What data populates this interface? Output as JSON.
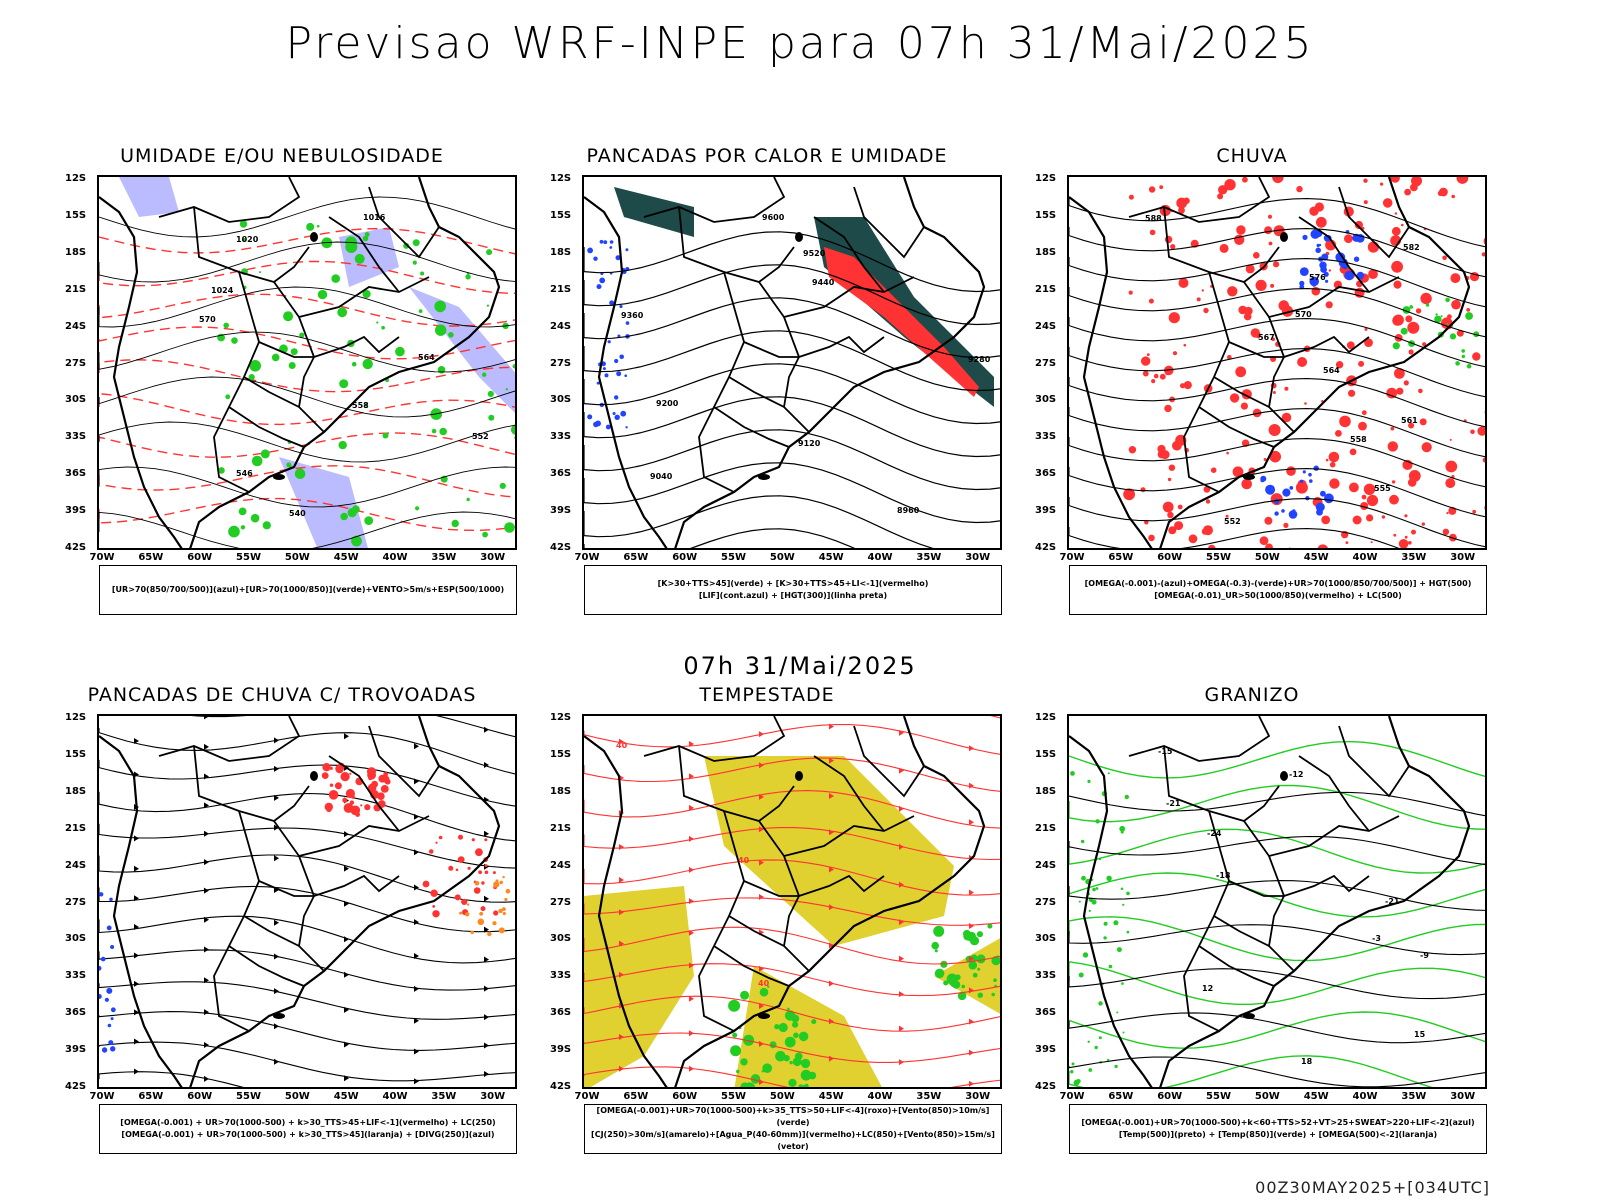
{
  "title": "Previsao WRF-INPE  para 07h 31/Mai/2025",
  "mid_title": "07h 31/Mai/2025",
  "footer": "00Z30MAY2025+[034UTC]",
  "lat_labels": [
    "12S",
    "15S",
    "18S",
    "21S",
    "24S",
    "27S",
    "30S",
    "33S",
    "36S",
    "39S",
    "42S"
  ],
  "lon_labels": [
    "70W",
    "65W",
    "60W",
    "55W",
    "50W",
    "45W",
    "40W",
    "35W",
    "30W"
  ],
  "panels": [
    {
      "title": "UMIDADE E/OU NEBULOSIDADE",
      "legend": [
        "[UR>70(850/700/500)](azul)+[UR>70(1000/850)](verde)+VENTO>5m/s+ESP(500/1000)"
      ],
      "type": "humidity"
    },
    {
      "title": "PANCADAS POR CALOR E UMIDADE",
      "legend": [
        "[K>30+TTS>45](verde) + [K>30+TTS>45+LI<-1](vermelho)",
        "[LIF](cont.azul) + [HGT(300)](linha preta)"
      ],
      "type": "heat"
    },
    {
      "title": "CHUVA",
      "legend": [
        "[OMEGA(-0.001)-(azul)+OMEGA(-0.3)-(verde)+UR>70(1000/850/700/500)] + HGT(500)",
        "[OMEGA(-0.01)_UR>50(1000/850)(vermelho) + LC(500)"
      ],
      "type": "rain"
    },
    {
      "title": "PANCADAS DE CHUVA C/ TROVOADAS",
      "legend": [
        "[OMEGA(-0.001) + UR>70(1000-500) + k>30_TTS>45+LIF<-1](vermelho) + LC(250)",
        "[OMEGA(-0.001) + UR>70(1000-500) + k>30_TTS>45](laranja) + [DIVG(250)](azul)"
      ],
      "type": "storms"
    },
    {
      "title": "TEMPESTADE",
      "legend": [
        "[OMEGA(-0.001)+UR>70(1000-500)+k>35_TTS>50+LIF<-4](roxo)+[Vento(850)>10m/s](verde)",
        "[CJ(250)>30m/s](amarelo)+[Agua_P(40-60mm)](vermelho)+LC(850)+[Vento(850)>15m/s](vetor)"
      ],
      "type": "tempest"
    },
    {
      "title": "GRANIZO",
      "legend": [
        "[OMEGA(-0.001)+UR>70(1000-500)+k<60+TTS>52+VT>25+SWEAT>220+LIF<-2](azul)",
        "[Temp(500)](preto) + [Temp(850)](verde) + [OMEGA(500)<-2](laranja)"
      ],
      "type": "hail"
    }
  ],
  "contour_labels": {
    "humidity": [
      "1016",
      "1020",
      "1024",
      "570",
      "564",
      "558",
      "552",
      "546",
      "540"
    ],
    "heat": [
      "9600",
      "9520",
      "9440",
      "9360",
      "9280",
      "9200",
      "9120",
      "9040",
      "8960"
    ],
    "rain": [
      "588",
      "582",
      "576",
      "570",
      "567",
      "564",
      "561",
      "558",
      "555",
      "552"
    ],
    "tempest": [
      "40",
      "40",
      "40"
    ],
    "hail": [
      "-15",
      "-12",
      "-21",
      "-24",
      "-18",
      "-21",
      "-3",
      "-9",
      "12",
      "15",
      "18"
    ]
  },
  "colors": {
    "green": "#22cc22",
    "red": "#ff3333",
    "blue": "#2244ff",
    "lavender": "#aaaaff",
    "yellow": "#e0d030",
    "orange": "#ff8822",
    "darkteal": "#1e4a4a"
  }
}
